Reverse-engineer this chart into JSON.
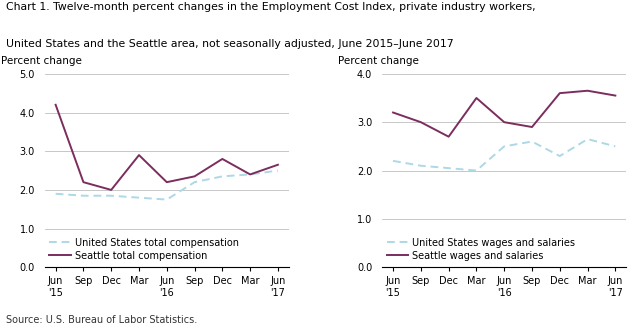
{
  "title_line1": "Chart 1. Twelve-month percent changes in the Employment Cost Index, private industry workers,",
  "title_line2": "United States and the Seattle area, not seasonally adjusted, June 2015–June 2017",
  "ylabel": "Percent change",
  "source": "Source: U.S. Bureau of Labor Statistics.",
  "x_tick_labels": [
    "Jun\n'15",
    "Sep",
    "Dec",
    "Mar",
    "Jun\n'16",
    "Sep",
    "Dec",
    "Mar",
    "Jun\n'17"
  ],
  "left": {
    "us_total_comp": [
      1.9,
      1.85,
      1.85,
      1.8,
      1.75,
      2.2,
      2.35,
      2.4,
      2.5
    ],
    "seattle_total_comp": [
      4.2,
      2.2,
      2.0,
      2.9,
      2.2,
      2.35,
      2.8,
      2.4,
      2.65
    ],
    "ylim": [
      0.0,
      5.0
    ],
    "yticks": [
      0.0,
      1.0,
      2.0,
      3.0,
      4.0,
      5.0
    ],
    "yticklabels": [
      "0.0",
      "1.0",
      "2.0",
      "3.0",
      "4.0",
      "5.0"
    ],
    "legend1": "United States total compensation",
    "legend2": "Seattle total compensation"
  },
  "right": {
    "us_wages": [
      2.2,
      2.1,
      2.05,
      2.0,
      2.5,
      2.6,
      2.3,
      2.65,
      2.5
    ],
    "seattle_wages": [
      3.2,
      3.0,
      2.7,
      3.5,
      3.0,
      2.9,
      3.6,
      3.65,
      3.55
    ],
    "ylim": [
      0.0,
      4.0
    ],
    "yticks": [
      0.0,
      1.0,
      2.0,
      3.0,
      4.0
    ],
    "yticklabels": [
      "0.0",
      "1.0",
      "2.0",
      "3.0",
      "4.0"
    ],
    "legend1": "United States wages and salaries",
    "legend2": "Seattle wages and salaries"
  },
  "us_color": "#ADD8E6",
  "seattle_color": "#7B2D5E",
  "background_color": "#FFFFFF",
  "grid_color": "#B0B0B0",
  "title_fontsize": 7.8,
  "axis_label_fontsize": 7.5,
  "tick_fontsize": 7.0,
  "legend_fontsize": 7.0,
  "source_fontsize": 7.0
}
